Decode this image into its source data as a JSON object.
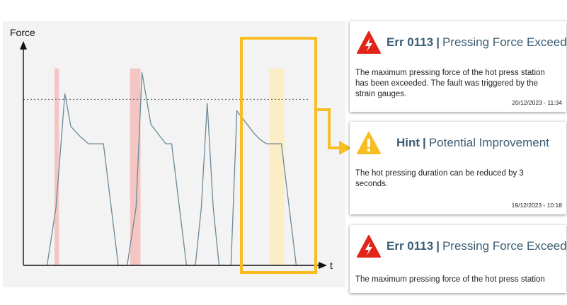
{
  "chart_data": {
    "type": "line",
    "ylabel": "Force",
    "xlabel": "t",
    "threshold": 86,
    "ylim": [
      0,
      110
    ],
    "xlim": [
      0,
      100
    ],
    "series": [
      {
        "x": [
          8,
          11,
          14,
          16,
          19,
          22,
          25,
          27,
          32,
          35,
          38,
          40,
          43,
          46,
          48,
          50,
          55,
          58,
          60,
          62,
          64,
          66,
          70,
          72,
          78,
          80,
          82,
          84,
          87,
          92,
          97
        ],
        "y": [
          0,
          30,
          89,
          72,
          67,
          63,
          63,
          63,
          0,
          0,
          30,
          100,
          73,
          67,
          63,
          63,
          0,
          0,
          30,
          84,
          30,
          0,
          0,
          80,
          68,
          65,
          63,
          63,
          63,
          0,
          0
        ]
      }
    ],
    "highlights": [
      {
        "x0": 10.5,
        "x1": 12,
        "color": "#f4c6c3"
      },
      {
        "x0": 36,
        "x1": 39.5,
        "color": "#f4c6c3"
      },
      {
        "x0": 83,
        "x1": 88,
        "color": "#fbedc6"
      }
    ],
    "focus_box_color": "#f7bd22"
  },
  "notifications": [
    {
      "icon": "error-triangle-icon",
      "icon_color": "#e1251b",
      "code": "Err 0113",
      "separator": "|",
      "title": "Pressing Force Exceeded",
      "body": "The maximum pressing force of the hot press station has been exceeded. The fault was triggered by the strain gauges.",
      "timestamp": "20/12/2023 - 11:34"
    },
    {
      "icon": "warning-triangle-icon",
      "icon_color": "#f7bd22",
      "code": "Hint",
      "separator": "|",
      "title": "Potential Improvement",
      "body": "The hot pressing duration can be reduced by 3 seconds.",
      "timestamp": "19/12/2023 - 10:18"
    },
    {
      "icon": "error-triangle-icon",
      "icon_color": "#e1251b",
      "code": "Err 0113",
      "separator": "|",
      "title": "Pressing Force Exceeded",
      "body": "The maximum pressing force of the hot press station",
      "timestamp": ""
    }
  ]
}
